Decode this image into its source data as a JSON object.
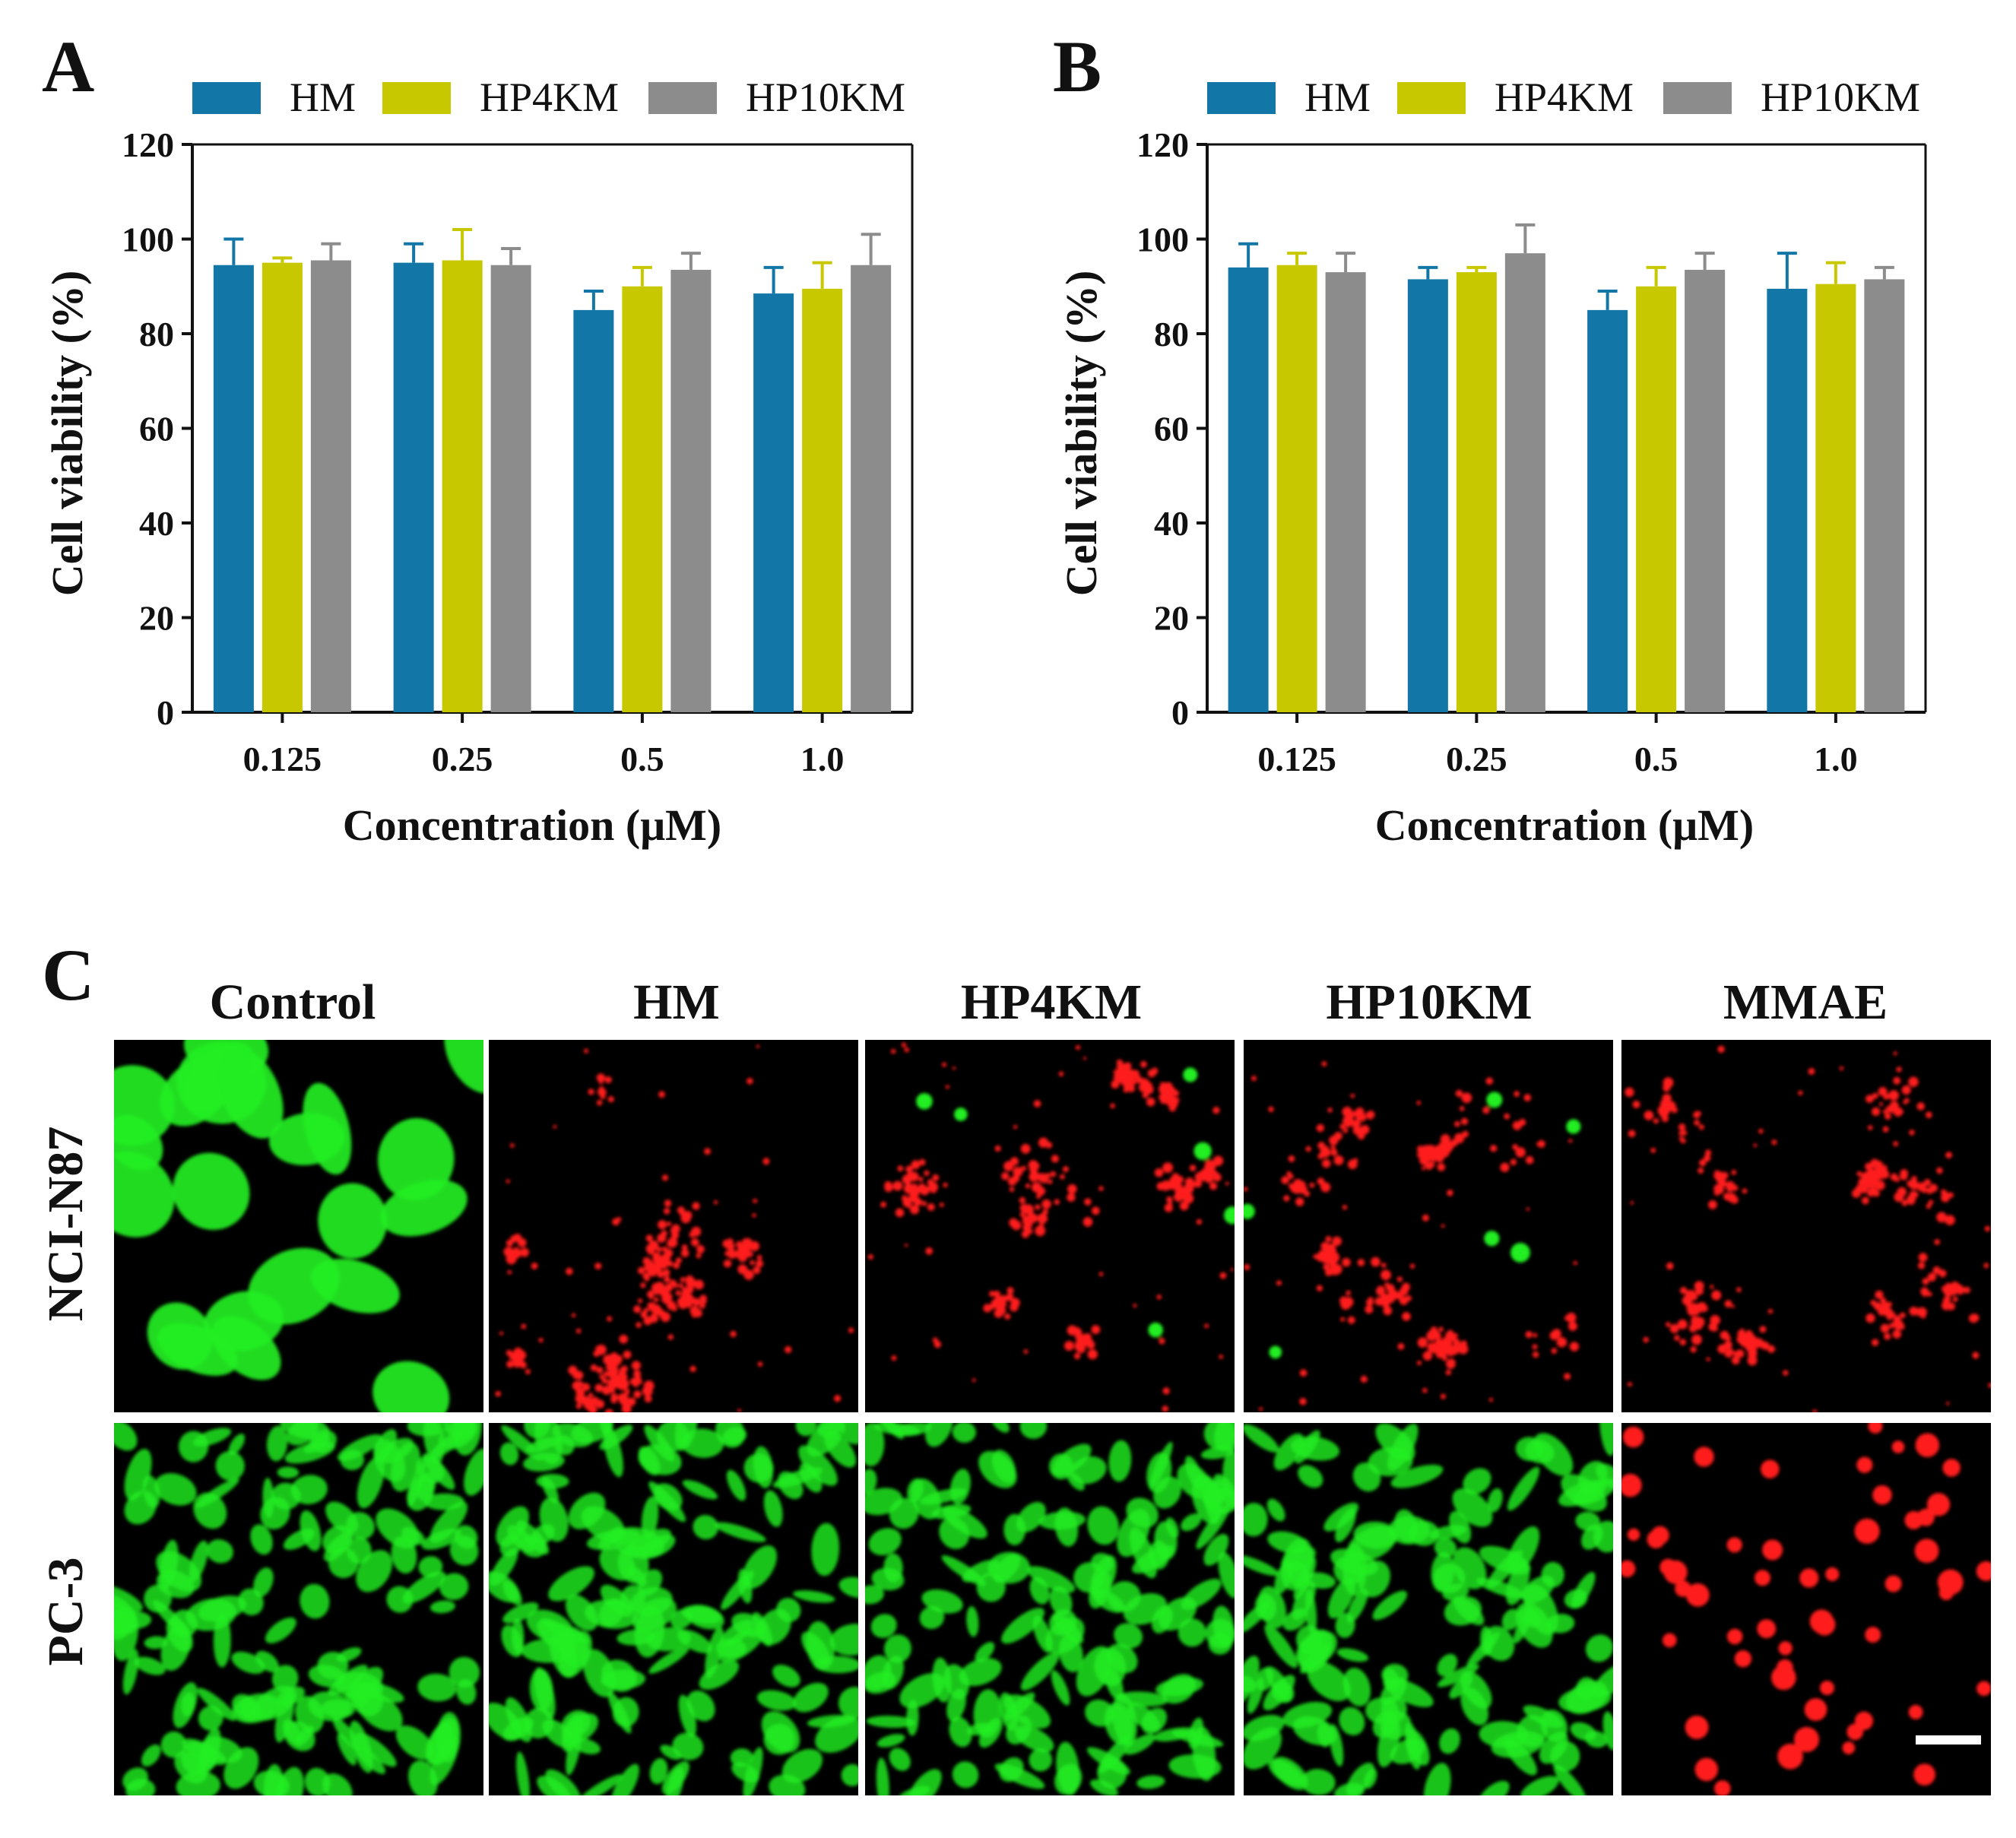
{
  "colors": {
    "HM": "#1277a6",
    "HP4KM": "#c8c800",
    "HP10KM": "#8c8c8c",
    "live_stain": "#22ee22",
    "dead_stain": "#ff1a1a",
    "micro_background": "#000000"
  },
  "chart_data": [
    {
      "panel": "A",
      "type": "bar",
      "categories": [
        "0.125",
        "0.25",
        "0.5",
        "1.0"
      ],
      "series": [
        {
          "name": "HM",
          "values": [
            94.5,
            95,
            85,
            88.5
          ],
          "errors": [
            5.5,
            4,
            4,
            5.5
          ]
        },
        {
          "name": "HP4KM",
          "values": [
            95,
            95.5,
            90,
            89.5
          ],
          "errors": [
            1,
            6.5,
            4,
            5.5
          ]
        },
        {
          "name": "HP10KM",
          "values": [
            95.5,
            94.5,
            93.5,
            94.5
          ],
          "errors": [
            3.5,
            3.5,
            3.5,
            6.5
          ]
        }
      ],
      "title": "",
      "xlabel": "Concentration (μM)",
      "ylabel": "Cell viability (%)",
      "ylim": [
        0,
        120
      ],
      "yticks": [
        0,
        20,
        40,
        60,
        80,
        100,
        120
      ],
      "legend": "top"
    },
    {
      "panel": "B",
      "type": "bar",
      "categories": [
        "0.125",
        "0.25",
        "0.5",
        "1.0"
      ],
      "series": [
        {
          "name": "HM",
          "values": [
            94,
            91.5,
            85,
            89.5
          ],
          "errors": [
            5,
            2.5,
            4,
            7.5
          ]
        },
        {
          "name": "HP4KM",
          "values": [
            94.5,
            93,
            90,
            90.5
          ],
          "errors": [
            2.5,
            1,
            4,
            4.5
          ]
        },
        {
          "name": "HP10KM",
          "values": [
            93,
            97,
            93.5,
            91.5
          ],
          "errors": [
            4,
            6,
            3.5,
            2.5
          ]
        }
      ],
      "title": "",
      "xlabel": "Concentration (μM)",
      "ylabel": "Cell viability (%)",
      "ylim": [
        0,
        120
      ],
      "yticks": [
        0,
        20,
        40,
        60,
        80,
        100,
        120
      ],
      "legend": "top"
    }
  ],
  "panel_c": {
    "letter": "C",
    "columns": [
      "Control",
      "HM",
      "HP4KM",
      "HP10KM",
      "MMAE"
    ],
    "rows": [
      "NCI-N87",
      "PC-3"
    ],
    "stains": [
      [
        "live",
        "dead",
        "dead",
        "dead",
        "dead"
      ],
      [
        "live",
        "live",
        "live",
        "live",
        "dead"
      ]
    ]
  }
}
